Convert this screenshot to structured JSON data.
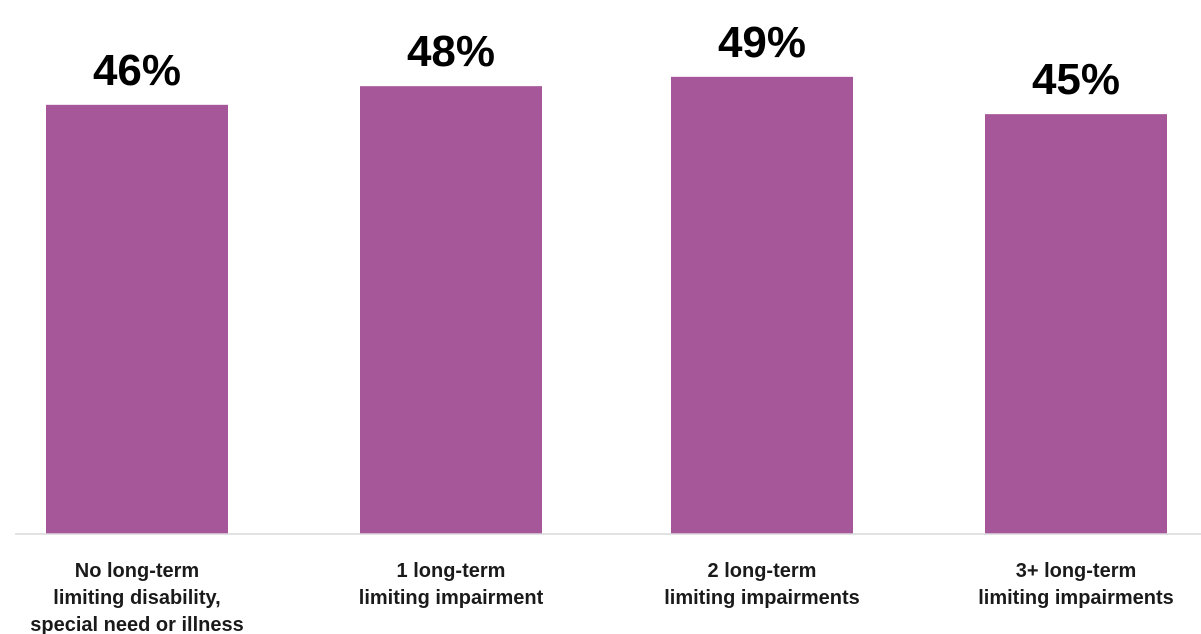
{
  "chart_data": {
    "type": "bar",
    "categories": [
      [
        "No long-term",
        "limiting disability,",
        "special need or illness"
      ],
      [
        "1 long-term",
        "limiting impairment"
      ],
      [
        "2 long-term",
        "limiting impairments"
      ],
      [
        "3+ long-term",
        "limiting impairments"
      ]
    ],
    "values": [
      46,
      48,
      49,
      45
    ],
    "value_labels": [
      "46%",
      "48%",
      "49%",
      "45%"
    ],
    "title": "",
    "xlabel": "",
    "ylabel": "",
    "ylim": [
      0,
      100
    ],
    "grid": false,
    "legend": "none",
    "bar_color": "#a5579a",
    "axis_color": "#d9d9d9"
  }
}
